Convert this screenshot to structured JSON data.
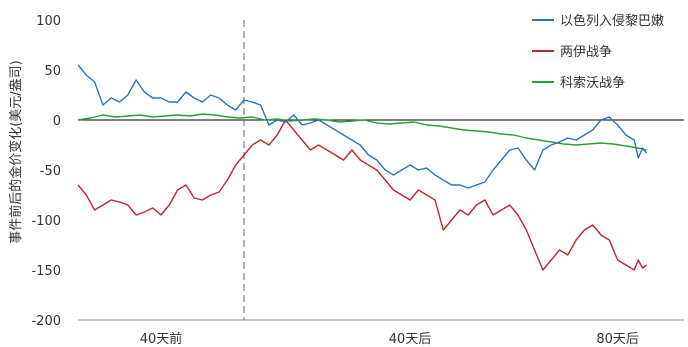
{
  "chart_data": {
    "type": "line",
    "ylabel": "事件前后的金价变化(美元/盎司)",
    "xlabel": "",
    "ylim": [
      -200,
      100
    ],
    "yticks": [
      100,
      50,
      0,
      -50,
      -100,
      -150,
      -200
    ],
    "xlim": [
      -40,
      106
    ],
    "xticks": [
      {
        "x": -20,
        "label": "40天前"
      },
      {
        "x": 40,
        "label": "40天后"
      },
      {
        "x": 90,
        "label": "80天后"
      }
    ],
    "event_line_x": 0,
    "zero_line": true,
    "grid": false,
    "legend_position": "top-right",
    "series": [
      {
        "name": "以色列入侵黎巴嫩",
        "color": "#2e75b6",
        "points": [
          [
            -40,
            55
          ],
          [
            -38,
            45
          ],
          [
            -36,
            38
          ],
          [
            -34,
            15
          ],
          [
            -32,
            22
          ],
          [
            -30,
            18
          ],
          [
            -28,
            25
          ],
          [
            -26,
            40
          ],
          [
            -24,
            28
          ],
          [
            -22,
            22
          ],
          [
            -20,
            22
          ],
          [
            -18,
            18
          ],
          [
            -16,
            18
          ],
          [
            -14,
            28
          ],
          [
            -12,
            22
          ],
          [
            -10,
            18
          ],
          [
            -8,
            25
          ],
          [
            -6,
            22
          ],
          [
            -4,
            15
          ],
          [
            -2,
            10
          ],
          [
            0,
            20
          ],
          [
            2,
            18
          ],
          [
            4,
            15
          ],
          [
            6,
            -5
          ],
          [
            8,
            0
          ],
          [
            10,
            -2
          ],
          [
            12,
            5
          ],
          [
            14,
            -5
          ],
          [
            16,
            -3
          ],
          [
            18,
            0
          ],
          [
            20,
            -5
          ],
          [
            22,
            -10
          ],
          [
            24,
            -15
          ],
          [
            26,
            -20
          ],
          [
            28,
            -25
          ],
          [
            30,
            -35
          ],
          [
            32,
            -40
          ],
          [
            34,
            -50
          ],
          [
            36,
            -55
          ],
          [
            38,
            -50
          ],
          [
            40,
            -45
          ],
          [
            42,
            -50
          ],
          [
            44,
            -48
          ],
          [
            46,
            -55
          ],
          [
            48,
            -60
          ],
          [
            50,
            -65
          ],
          [
            52,
            -65
          ],
          [
            54,
            -68
          ],
          [
            56,
            -65
          ],
          [
            58,
            -62
          ],
          [
            60,
            -50
          ],
          [
            62,
            -40
          ],
          [
            64,
            -30
          ],
          [
            66,
            -28
          ],
          [
            68,
            -40
          ],
          [
            70,
            -50
          ],
          [
            72,
            -30
          ],
          [
            74,
            -25
          ],
          [
            76,
            -22
          ],
          [
            78,
            -18
          ],
          [
            80,
            -20
          ],
          [
            82,
            -15
          ],
          [
            84,
            -10
          ],
          [
            86,
            0
          ],
          [
            88,
            3
          ],
          [
            90,
            -5
          ],
          [
            92,
            -15
          ],
          [
            94,
            -20
          ],
          [
            95,
            -38
          ],
          [
            96,
            -28
          ],
          [
            97,
            -33
          ]
        ]
      },
      {
        "name": "两伊战争",
        "color": "#c0262f",
        "points": [
          [
            -40,
            -65
          ],
          [
            -38,
            -75
          ],
          [
            -36,
            -90
          ],
          [
            -34,
            -85
          ],
          [
            -32,
            -80
          ],
          [
            -30,
            -82
          ],
          [
            -28,
            -85
          ],
          [
            -26,
            -95
          ],
          [
            -24,
            -92
          ],
          [
            -22,
            -88
          ],
          [
            -20,
            -95
          ],
          [
            -18,
            -85
          ],
          [
            -16,
            -70
          ],
          [
            -14,
            -65
          ],
          [
            -12,
            -78
          ],
          [
            -10,
            -80
          ],
          [
            -8,
            -75
          ],
          [
            -6,
            -72
          ],
          [
            -4,
            -60
          ],
          [
            -2,
            -45
          ],
          [
            0,
            -35
          ],
          [
            2,
            -25
          ],
          [
            4,
            -20
          ],
          [
            6,
            -25
          ],
          [
            8,
            -15
          ],
          [
            10,
            0
          ],
          [
            12,
            -10
          ],
          [
            14,
            -20
          ],
          [
            16,
            -30
          ],
          [
            18,
            -25
          ],
          [
            20,
            -30
          ],
          [
            22,
            -35
          ],
          [
            24,
            -40
          ],
          [
            26,
            -30
          ],
          [
            28,
            -40
          ],
          [
            30,
            -45
          ],
          [
            32,
            -50
          ],
          [
            34,
            -60
          ],
          [
            36,
            -70
          ],
          [
            38,
            -75
          ],
          [
            40,
            -80
          ],
          [
            42,
            -70
          ],
          [
            44,
            -75
          ],
          [
            46,
            -80
          ],
          [
            48,
            -110
          ],
          [
            50,
            -100
          ],
          [
            52,
            -90
          ],
          [
            54,
            -95
          ],
          [
            56,
            -85
          ],
          [
            58,
            -80
          ],
          [
            60,
            -95
          ],
          [
            62,
            -90
          ],
          [
            64,
            -85
          ],
          [
            66,
            -95
          ],
          [
            68,
            -110
          ],
          [
            70,
            -130
          ],
          [
            72,
            -150
          ],
          [
            74,
            -140
          ],
          [
            76,
            -130
          ],
          [
            78,
            -135
          ],
          [
            80,
            -120
          ],
          [
            82,
            -110
          ],
          [
            84,
            -105
          ],
          [
            86,
            -115
          ],
          [
            88,
            -120
          ],
          [
            90,
            -140
          ],
          [
            92,
            -145
          ],
          [
            94,
            -150
          ],
          [
            95,
            -140
          ],
          [
            96,
            -148
          ],
          [
            97,
            -145
          ]
        ]
      },
      {
        "name": "科索沃战争",
        "color": "#2e9b3f",
        "points": [
          [
            -40,
            0
          ],
          [
            -37,
            2
          ],
          [
            -34,
            5
          ],
          [
            -31,
            3
          ],
          [
            -28,
            4
          ],
          [
            -25,
            5
          ],
          [
            -22,
            3
          ],
          [
            -19,
            4
          ],
          [
            -16,
            5
          ],
          [
            -13,
            4
          ],
          [
            -10,
            6
          ],
          [
            -7,
            5
          ],
          [
            -4,
            3
          ],
          [
            -1,
            2
          ],
          [
            2,
            3
          ],
          [
            5,
            0
          ],
          [
            8,
            1
          ],
          [
            11,
            -1
          ],
          [
            14,
            0
          ],
          [
            17,
            1
          ],
          [
            20,
            0
          ],
          [
            23,
            -2
          ],
          [
            26,
            -1
          ],
          [
            29,
            0
          ],
          [
            32,
            -3
          ],
          [
            35,
            -4
          ],
          [
            38,
            -3
          ],
          [
            41,
            -2
          ],
          [
            44,
            -5
          ],
          [
            47,
            -6
          ],
          [
            50,
            -8
          ],
          [
            53,
            -10
          ],
          [
            56,
            -11
          ],
          [
            59,
            -12
          ],
          [
            62,
            -14
          ],
          [
            65,
            -15
          ],
          [
            68,
            -18
          ],
          [
            71,
            -20
          ],
          [
            74,
            -22
          ],
          [
            77,
            -24
          ],
          [
            80,
            -25
          ],
          [
            83,
            -24
          ],
          [
            86,
            -23
          ],
          [
            89,
            -24
          ],
          [
            92,
            -26
          ],
          [
            95,
            -28
          ],
          [
            97,
            -30
          ]
        ]
      }
    ]
  }
}
